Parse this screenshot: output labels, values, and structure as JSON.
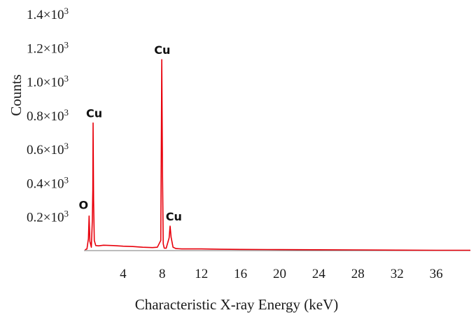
{
  "chart_data": {
    "type": "line",
    "title": "",
    "xlabel": "Characteristic X-ray Energy (keV)",
    "ylabel": "Counts",
    "xlim": [
      0,
      39.5
    ],
    "ylim": [
      0,
      1400
    ],
    "x_ticks": [
      4,
      8,
      12,
      16,
      20,
      24,
      28,
      32,
      36
    ],
    "x_tick_labels": [
      "4",
      "8",
      "12",
      "16",
      "20",
      "24",
      "28",
      "32",
      "36"
    ],
    "y_ticks": [
      200,
      400,
      600,
      800,
      1000,
      1200,
      1400
    ],
    "y_tick_labels": [
      "0.2×10",
      "0.4×10",
      "0.6×10",
      "0.8×10",
      "1.0×10",
      "1.2×10",
      "1.4×10"
    ],
    "y_tick_exponent": "3",
    "grid": false,
    "legend": "none",
    "color": "#e8000b",
    "series": [
      {
        "x": [
          0.1,
          0.3,
          0.45,
          0.52,
          0.6,
          0.75,
          0.85,
          0.9,
          0.93,
          0.98,
          1.05,
          1.2,
          1.5,
          2,
          3,
          4,
          5,
          6,
          7,
          7.5,
          7.85,
          7.95,
          8.02,
          8.1,
          8.2,
          8.4,
          8.7,
          8.8,
          8.9,
          9.1,
          9.4,
          10,
          12,
          14,
          16,
          20,
          24,
          28,
          32,
          36,
          39.5
        ],
        "y": [
          5,
          10,
          70,
          205,
          55,
          20,
          180,
          360,
          755,
          300,
          60,
          30,
          28,
          32,
          30,
          26,
          24,
          20,
          18,
          20,
          60,
          1130,
          480,
          40,
          15,
          14,
          75,
          145,
          80,
          20,
          12,
          10,
          10,
          8,
          7,
          6,
          5,
          4,
          3,
          2,
          2
        ]
      }
    ],
    "annotations": [
      {
        "text": "O",
        "x": 0.52,
        "y": 205
      },
      {
        "text": "Cu",
        "x": 0.93,
        "y": 755
      },
      {
        "text": "Cu",
        "x": 8.0,
        "y": 1130
      },
      {
        "text": "Cu",
        "x": 8.9,
        "y": 145
      }
    ]
  }
}
